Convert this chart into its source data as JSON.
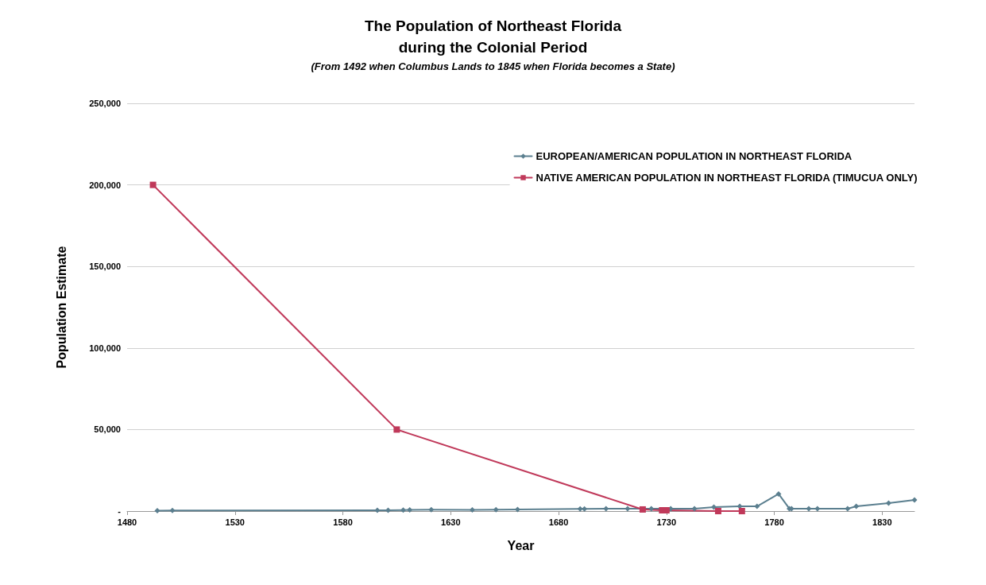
{
  "chart_data": {
    "type": "line",
    "title": "The Population of Northeast Florida\nduring the Colonial Period",
    "subtitle": "(From 1492 when Columbus Lands to 1845 when Florida becomes a State)",
    "xlabel": "Year",
    "ylabel": "Population Estimate",
    "xlim": [
      1480,
      1845
    ],
    "xticks": [
      1480,
      1530,
      1580,
      1630,
      1680,
      1730,
      1780,
      1830
    ],
    "ylim": [
      0,
      250000
    ],
    "yticks": [
      {
        "value": 0,
        "label": "-"
      },
      {
        "value": 50000,
        "label": "50,000"
      },
      {
        "value": 100000,
        "label": "100,000"
      },
      {
        "value": 150000,
        "label": "150,000"
      },
      {
        "value": 200000,
        "label": "200,000"
      },
      {
        "value": 250000,
        "label": "250,000"
      }
    ],
    "grid": "y",
    "legend": "top right",
    "line_style": "solid",
    "series": [
      {
        "name": "EUROPEAN/AMERICAN POPULATION IN NORTHEAST FLORIDA",
        "color": "#5b7f8f",
        "marker": "diamond",
        "x": [
          1494,
          1501,
          1596,
          1601,
          1608,
          1611,
          1621,
          1640,
          1651,
          1661,
          1690,
          1692,
          1702,
          1712,
          1723,
          1732,
          1743,
          1752,
          1764,
          1772,
          1782,
          1787,
          1788,
          1796,
          1800,
          1814,
          1818,
          1833,
          1845
        ],
        "values": [
          200,
          400,
          500,
          500,
          600,
          700,
          800,
          700,
          800,
          1000,
          1400,
          1400,
          1500,
          1500,
          1500,
          1500,
          1500,
          2400,
          2900,
          2900,
          10500,
          1500,
          1500,
          1500,
          1500,
          1500,
          2900,
          4900,
          6800
        ]
      },
      {
        "name": "NATIVE AMERICAN POPULATION IN NORTHEAST FLORIDA (TIMUCUA ONLY)",
        "color": "#c0395a",
        "marker": "square",
        "x": [
          1492,
          1605,
          1719,
          1728,
          1730,
          1754,
          1765
        ],
        "values": [
          200000,
          50000,
          1000,
          500,
          500,
          0,
          0
        ]
      }
    ]
  }
}
